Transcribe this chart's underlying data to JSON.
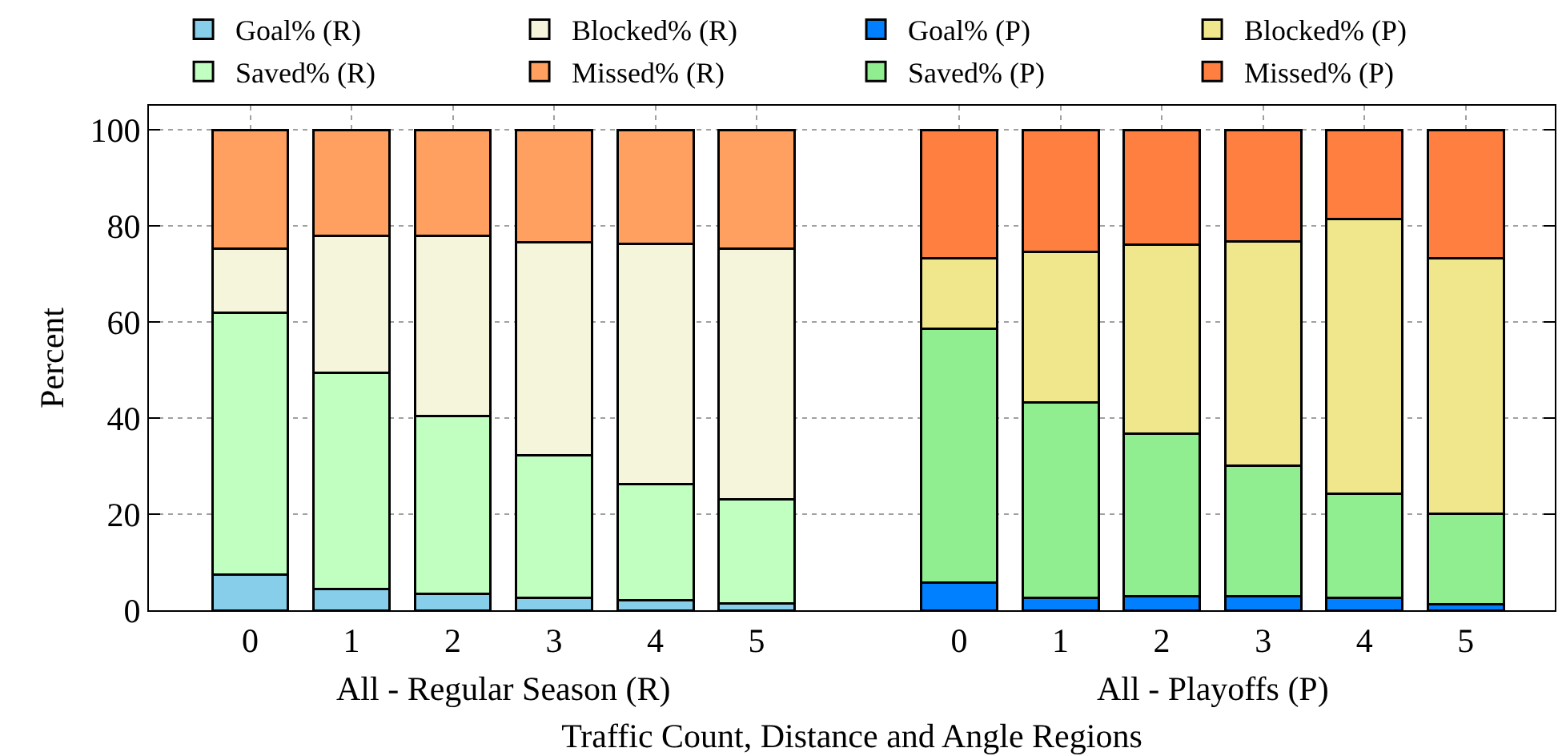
{
  "chart_data": {
    "type": "bar",
    "stacked": true,
    "categories": [
      "0",
      "1",
      "2",
      "3",
      "4",
      "5",
      null,
      "0",
      "1",
      "2",
      "3",
      "4",
      "5"
    ],
    "series": [
      {
        "name": "Goal% (R)",
        "color": "#87ceeb",
        "values": [
          7.4,
          4.4,
          3.5,
          2.6,
          2.1,
          1.5,
          null,
          null,
          null,
          null,
          null,
          null,
          null
        ]
      },
      {
        "name": "Saved% (R)",
        "color": "#c1ffc1",
        "values": [
          54.5,
          45.0,
          36.9,
          29.7,
          24.2,
          21.6,
          null,
          null,
          null,
          null,
          null,
          null,
          null
        ]
      },
      {
        "name": "Blocked% (R)",
        "color": "#f5f5dc",
        "values": [
          13.3,
          28.5,
          37.5,
          44.3,
          50.0,
          52.1,
          null,
          null,
          null,
          null,
          null,
          null,
          null
        ]
      },
      {
        "name": "Missed% (R)",
        "color": "#ffa060",
        "values": [
          24.8,
          22.1,
          22.1,
          23.4,
          23.7,
          24.8,
          null,
          null,
          null,
          null,
          null,
          null,
          null
        ]
      },
      {
        "name": "Goal% (P)",
        "color": "#0080ff",
        "values": [
          null,
          null,
          null,
          null,
          null,
          null,
          null,
          5.7,
          2.6,
          2.9,
          2.9,
          2.6,
          1.2
        ]
      },
      {
        "name": "Saved% (P)",
        "color": "#90ee90",
        "values": [
          null,
          null,
          null,
          null,
          null,
          null,
          null,
          52.9,
          40.6,
          33.9,
          27.2,
          21.7,
          18.9
        ]
      },
      {
        "name": "Blocked% (P)",
        "color": "#f0e68c",
        "values": [
          null,
          null,
          null,
          null,
          null,
          null,
          null,
          14.6,
          31.4,
          39.3,
          46.6,
          57.1,
          53.1
        ]
      },
      {
        "name": "Missed% (P)",
        "color": "#ff7f40",
        "values": [
          null,
          null,
          null,
          null,
          null,
          null,
          null,
          26.8,
          25.4,
          23.9,
          23.3,
          18.6,
          26.8
        ]
      }
    ],
    "xlabel": "Traffic Count, Distance and Angle Regions",
    "ylabel": "Percent",
    "ylim": [
      0,
      105
    ],
    "yticks": [
      0,
      20,
      40,
      60,
      80,
      100
    ],
    "grid": true,
    "legend": "top",
    "annotations": [
      "All - Regular Season (R)",
      "All - Playoffs (P)"
    ]
  }
}
